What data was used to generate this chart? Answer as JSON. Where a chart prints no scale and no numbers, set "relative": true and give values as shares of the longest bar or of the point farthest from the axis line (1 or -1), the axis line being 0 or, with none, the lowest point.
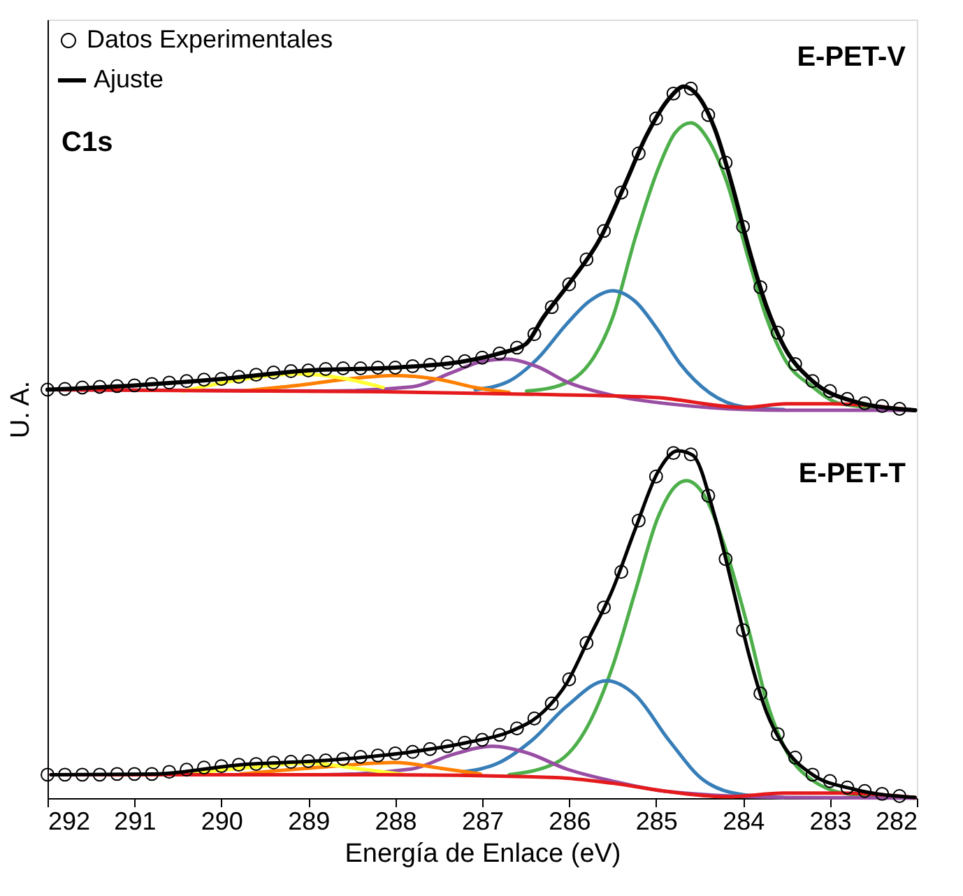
{
  "chart_data": {
    "type": "line",
    "relative": true,
    "xlabel": "Energía de Enlace (eV)",
    "ylabel": "U. A.",
    "xlim": [
      292,
      282
    ],
    "xticks": [
      292,
      291,
      290,
      289,
      288,
      287,
      286,
      285,
      284,
      283,
      282
    ],
    "legend": "top left",
    "line_style": "solid",
    "annotations": [
      "C1s",
      "E-PET-V",
      "E-PET-T"
    ],
    "series": [
      {
        "color": "#4daf4a",
        "x": [
          286.49,
          286.16,
          285.77,
          285.5,
          285.24,
          284.98,
          284.78,
          284.6,
          284.39,
          284.19,
          283.93,
          283.73,
          283.53,
          283.2,
          282.87,
          282.02
        ],
        "values": [
          0.572,
          0.578,
          0.61,
          0.675,
          0.787,
          0.883,
          0.935,
          0.949,
          0.923,
          0.867,
          0.755,
          0.675,
          0.619,
          0.578,
          0.554,
          0.545
        ]
      },
      {
        "color": "#377eb8",
        "x": [
          287.08,
          286.69,
          286.36,
          286.03,
          285.77,
          285.5,
          285.24,
          284.98,
          284.72,
          284.39,
          284.0,
          283.53
        ],
        "values": [
          0.574,
          0.586,
          0.618,
          0.666,
          0.698,
          0.713,
          0.698,
          0.658,
          0.61,
          0.57,
          0.55,
          0.546
        ]
      },
      {
        "color": "#984ea3",
        "x": [
          291.96,
          288.8,
          287.81,
          287.35,
          287.02,
          286.72,
          286.36,
          286.03,
          285.5,
          284.85,
          283.53,
          282.02
        ],
        "values": [
          0.574,
          0.572,
          0.578,
          0.598,
          0.613,
          0.617,
          0.606,
          0.585,
          0.566,
          0.554,
          0.545,
          0.545
        ]
      },
      {
        "color": "#ff7f00",
        "x": [
          289.78,
          289.13,
          288.47,
          288.01,
          287.48,
          287.08,
          286.69
        ],
        "values": [
          0.572,
          0.58,
          0.59,
          0.594,
          0.588,
          0.577,
          0.57
        ]
      },
      {
        "color": "#ffff33",
        "x": [
          290.44,
          289.78,
          289.13,
          288.6,
          288.14
        ],
        "values": [
          0.572,
          0.588,
          0.596,
          0.59,
          0.577
        ]
      },
      {
        "color": "#e41a1c",
        "x": [
          291.96,
          288.14,
          286.16,
          285.0,
          284.0,
          283.5,
          283.0,
          282.02
        ],
        "values": [
          0.574,
          0.571,
          0.567,
          0.563,
          0.549,
          0.554,
          0.554,
          0.545
        ]
      },
      {
        "type": "scatter",
        "marker": "circle",
        "name": "Datos Experimentales",
        "color": "#000000",
        "x": [
          292,
          291.8,
          291.6,
          291.4,
          291.2,
          291,
          290.8,
          290.6,
          290.4,
          290.2,
          290,
          289.8,
          289.6,
          289.4,
          289.2,
          289,
          288.8,
          288.6,
          288.4,
          288.2,
          288,
          287.8,
          287.6,
          287.4,
          287.2,
          287,
          286.8,
          286.6,
          286.4,
          286.2,
          286,
          285.8,
          285.6,
          285.4,
          285.2,
          285,
          284.8,
          284.6,
          284.4,
          284.2,
          284,
          283.8,
          283.6,
          283.4,
          283.2,
          283,
          282.8,
          282.6,
          282.4,
          282.2
        ],
        "values": [
          0.574,
          0.575,
          0.577,
          0.578,
          0.579,
          0.58,
          0.582,
          0.584,
          0.586,
          0.588,
          0.589,
          0.592,
          0.595,
          0.598,
          0.6,
          0.601,
          0.603,
          0.604,
          0.604,
          0.605,
          0.605,
          0.607,
          0.609,
          0.612,
          0.614,
          0.619,
          0.625,
          0.633,
          0.652,
          0.69,
          0.722,
          0.757,
          0.797,
          0.851,
          0.906,
          0.955,
          0.99,
          0.997,
          0.96,
          0.893,
          0.803,
          0.718,
          0.654,
          0.61,
          0.586,
          0.572,
          0.561,
          0.555,
          0.551,
          0.547
        ]
      },
      {
        "name": "Ajuste",
        "color": "#000000",
        "x": [
          292,
          291,
          290,
          289,
          288,
          287.2,
          286.8,
          286.5,
          286.3,
          286.0,
          285.64,
          285.37,
          285.11,
          284.85,
          284.68,
          284.52,
          284.32,
          284.12,
          283.93,
          283.73,
          283.53,
          283.2,
          282.74,
          282.02
        ],
        "values": [
          0.574,
          0.58,
          0.589,
          0.601,
          0.605,
          0.614,
          0.625,
          0.638,
          0.675,
          0.723,
          0.787,
          0.859,
          0.931,
          0.983,
          1.0,
          0.987,
          0.939,
          0.859,
          0.771,
          0.691,
          0.635,
          0.586,
          0.558,
          0.545
        ]
      },
      {
        "color": "#4daf4a",
        "x": [
          286.69,
          286.16,
          285.77,
          285.5,
          285.24,
          284.98,
          284.78,
          284.65,
          284.45,
          284.19,
          283.93,
          283.73,
          283.53,
          283.2,
          282.74,
          282.02
        ],
        "values": [
          0.033,
          0.049,
          0.105,
          0.185,
          0.29,
          0.394,
          0.438,
          0.446,
          0.426,
          0.346,
          0.234,
          0.137,
          0.073,
          0.025,
          0.005,
          0.001
        ]
      },
      {
        "color": "#377eb8",
        "x": [
          287.22,
          286.82,
          286.43,
          286.03,
          285.57,
          285.24,
          284.85,
          284.45,
          284.0,
          283.53
        ],
        "values": [
          0.037,
          0.049,
          0.081,
          0.129,
          0.165,
          0.145,
          0.081,
          0.025,
          0.005,
          0.001
        ]
      },
      {
        "color": "#984ea3",
        "x": [
          291.96,
          288.8,
          287.81,
          287.35,
          286.88,
          286.49,
          286.03,
          285.5,
          284.85,
          283.53,
          282.02
        ],
        "values": [
          0.033,
          0.033,
          0.041,
          0.061,
          0.073,
          0.064,
          0.041,
          0.024,
          0.009,
          0.001,
          0.0
        ]
      },
      {
        "color": "#ff7f00",
        "x": [
          289.78,
          288.8,
          288.01,
          287.48,
          287.02
        ],
        "values": [
          0.034,
          0.044,
          0.05,
          0.042,
          0.034
        ]
      },
      {
        "color": "#ffff33",
        "x": [
          290.44,
          289.59,
          289.0,
          288.4,
          287.88
        ],
        "values": [
          0.034,
          0.044,
          0.049,
          0.041,
          0.033
        ]
      },
      {
        "color": "#e41a1c",
        "x": [
          291.96,
          288.14,
          286.16,
          285.5,
          284.85,
          284.19,
          283.53,
          282.87,
          282.02
        ],
        "values": [
          0.033,
          0.033,
          0.029,
          0.021,
          0.009,
          0.002,
          0.007,
          0.007,
          0.001
        ]
      },
      {
        "type": "scatter",
        "marker": "circle",
        "color": "#000000",
        "x": [
          292,
          291.8,
          291.6,
          291.4,
          291.2,
          291,
          290.8,
          290.6,
          290.4,
          290.2,
          290,
          289.8,
          289.6,
          289.4,
          289.2,
          289,
          288.8,
          288.6,
          288.4,
          288.2,
          288,
          287.8,
          287.6,
          287.4,
          287.2,
          287,
          286.8,
          286.6,
          286.4,
          286.2,
          286,
          285.8,
          285.6,
          285.4,
          285.2,
          285,
          284.8,
          284.6,
          284.4,
          284.2,
          284,
          283.8,
          283.6,
          283.4,
          283.2,
          283,
          282.8,
          282.6,
          282.4,
          282.2
        ],
        "values": [
          0.033,
          0.033,
          0.033,
          0.033,
          0.034,
          0.034,
          0.034,
          0.037,
          0.04,
          0.043,
          0.045,
          0.047,
          0.048,
          0.05,
          0.051,
          0.052,
          0.053,
          0.055,
          0.058,
          0.06,
          0.063,
          0.065,
          0.069,
          0.073,
          0.078,
          0.082,
          0.089,
          0.098,
          0.112,
          0.133,
          0.167,
          0.218,
          0.268,
          0.318,
          0.39,
          0.452,
          0.485,
          0.483,
          0.425,
          0.336,
          0.236,
          0.147,
          0.09,
          0.057,
          0.033,
          0.024,
          0.015,
          0.01,
          0.006,
          0.003
        ]
      },
      {
        "color": "#000000",
        "x": [
          291.96,
          290.77,
          289.78,
          288.8,
          287.81,
          287.14,
          286.69,
          286.3,
          286.03,
          285.77,
          285.5,
          285.24,
          284.98,
          284.75,
          284.58,
          284.32,
          284.12,
          283.93,
          283.73,
          283.53,
          283.2,
          282.74,
          282.02
        ],
        "values": [
          0.033,
          0.034,
          0.047,
          0.053,
          0.065,
          0.079,
          0.093,
          0.121,
          0.161,
          0.225,
          0.293,
          0.378,
          0.458,
          0.488,
          0.482,
          0.394,
          0.297,
          0.201,
          0.121,
          0.073,
          0.033,
          0.013,
          0.001
        ]
      }
    ]
  }
}
